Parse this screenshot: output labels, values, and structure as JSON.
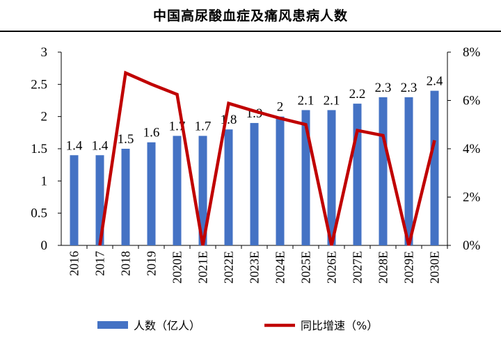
{
  "chart_data": {
    "type": "bar+line",
    "title": "中国高尿酸血症及痛风患病人数",
    "categories": [
      "2016",
      "2017",
      "2018",
      "2019",
      "2020E",
      "2021E",
      "2022E",
      "2023E",
      "2024E",
      "2025E",
      "2026E",
      "2027E",
      "2028E",
      "2029E",
      "2030E"
    ],
    "series": [
      {
        "name": "人数（亿人）",
        "type": "bar",
        "axis": "left",
        "color": "#4472C4",
        "values": [
          1.4,
          1.4,
          1.5,
          1.6,
          1.7,
          1.7,
          1.8,
          1.9,
          2,
          2.1,
          2.1,
          2.2,
          2.3,
          2.3,
          2.4
        ],
        "labels": [
          "1.4",
          "1.4",
          "1.5",
          "1.6",
          "1.7",
          "1.7",
          "1.8",
          "1.9",
          "2",
          "2.1",
          "2.1",
          "2.2",
          "2.3",
          "2.3",
          "2.4"
        ]
      },
      {
        "name": "同比增速（%）",
        "type": "line",
        "axis": "right",
        "color": "#C00000",
        "values": [
          null,
          0,
          7.14,
          6.67,
          6.25,
          0,
          5.88,
          5.56,
          5.26,
          5.0,
          0,
          4.76,
          4.55,
          0,
          4.35
        ]
      }
    ],
    "left_axis": {
      "ylim": [
        0,
        3
      ],
      "ticks": [
        "0",
        "0.5",
        "1",
        "1.5",
        "2",
        "2.5",
        "3"
      ]
    },
    "right_axis": {
      "ylim": [
        0,
        8
      ],
      "ticks": [
        "0%",
        "2%",
        "4%",
        "6%",
        "8%"
      ]
    },
    "grid": false,
    "legend": "bottom"
  }
}
